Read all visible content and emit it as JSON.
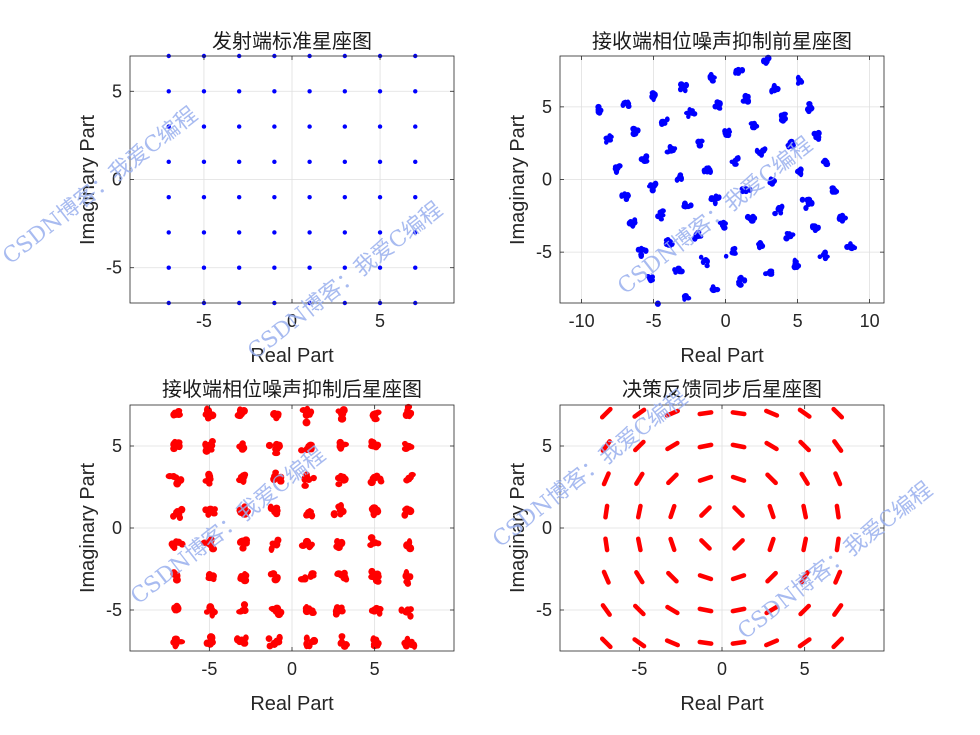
{
  "colors": {
    "blue": "#0000ff",
    "red": "#ff0000",
    "grid": "#dfdfdf",
    "axes": "#262626",
    "watermark": "#9ab0ee"
  },
  "watermarks": [
    "CSDN博客：我爱C编程",
    "CSDN博客：我爱C编程",
    "CSDN博客：我爱C编程",
    "CSDN博客：我爱C编程",
    "CSDN博客：我爱C编程",
    "CSDN博客：我爱C编程"
  ],
  "chart_data": [
    {
      "type": "scatter",
      "title": "发射端标准星座图",
      "xlabel": "Real Part",
      "ylabel": "Imaginary Part",
      "xlim": [
        -9.2,
        9.2
      ],
      "ylim": [
        -7,
        7
      ],
      "xticks": [
        -5,
        0,
        5
      ],
      "yticks": [
        -5,
        0,
        5
      ],
      "grid": true,
      "color": "#0000ff",
      "marker": "dot",
      "points": "64-QAM grid: x,y in {-7,-5,-3,-1,1,3,5,7}",
      "levels": [
        -7,
        -5,
        -3,
        -1,
        1,
        3,
        5,
        7
      ],
      "clusters": []
    },
    {
      "type": "scatter",
      "title": "接收端相位噪声抑制前星座图",
      "xlabel": "Real Part",
      "ylabel": "Imaginary Part",
      "xlim": [
        -11.5,
        11
      ],
      "ylim": [
        -8.5,
        8.5
      ],
      "xticks": [
        -10,
        -5,
        0,
        5,
        10
      ],
      "yticks": [
        -5,
        0,
        5
      ],
      "grid": true,
      "color": "#0000ff",
      "marker": "cluster",
      "rotation_deg": 17,
      "levels": [
        -7,
        -5,
        -3,
        -1,
        1,
        3,
        5,
        7
      ],
      "cluster_size": [
        0.55,
        0.55
      ],
      "clusters": []
    },
    {
      "type": "scatter",
      "title": "接收端相位噪声抑制后星座图",
      "xlabel": "Real Part",
      "ylabel": "Imaginary Part",
      "xlim": [
        -9.8,
        9.8
      ],
      "ylim": [
        -7.5,
        7.5
      ],
      "xticks": [
        -5,
        0,
        5
      ],
      "yticks": [
        -5,
        0,
        5
      ],
      "grid": true,
      "color": "#ff0000",
      "marker": "cluster",
      "rotation_deg": 0,
      "levels": [
        -7,
        -5,
        -3,
        -1,
        1,
        3,
        5,
        7
      ],
      "cluster_size": [
        0.6,
        0.6
      ],
      "clusters": []
    },
    {
      "type": "scatter",
      "title": "决策反馈同步后星座图",
      "xlabel": "Real Part",
      "ylabel": "Imaginary Part",
      "xlim": [
        -9.8,
        9.8
      ],
      "ylim": [
        -7.5,
        7.5
      ],
      "xticks": [
        -5,
        0,
        5
      ],
      "yticks": [
        -5,
        0,
        5
      ],
      "grid": true,
      "color": "#ff0000",
      "marker": "tangential-arc",
      "levels": [
        -7,
        -5,
        -3,
        -1,
        1,
        3,
        5,
        7
      ],
      "arc_half_length": 0.35,
      "clusters": []
    }
  ]
}
